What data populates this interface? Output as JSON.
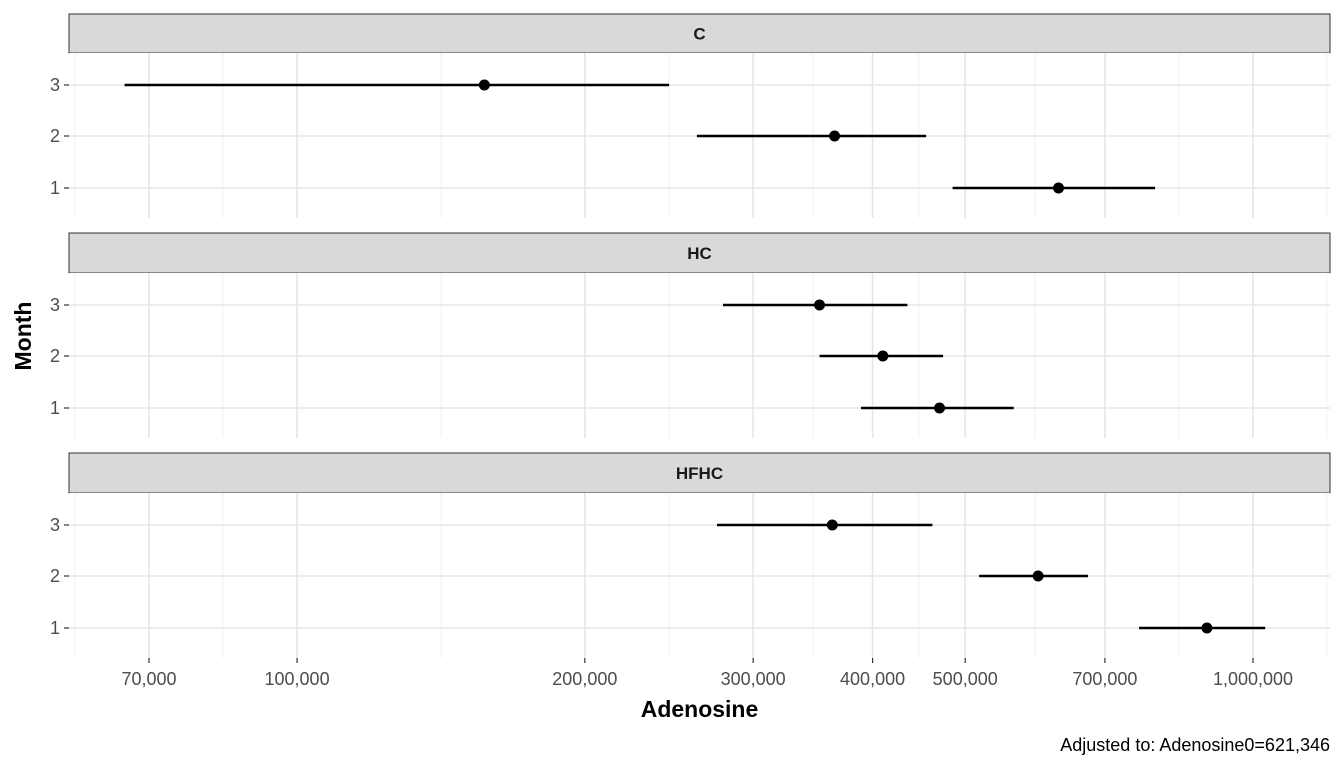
{
  "chart_data": {
    "type": "scatter",
    "subtype": "point-range, faceted, log x-axis",
    "xlabel": "Adenosine",
    "ylabel": "Month",
    "caption": "Adjusted to: Adenosine0=621,346",
    "x_scale": "log10",
    "xlim": [
      60000,
      1150000
    ],
    "x_ticks": [
      70000,
      100000,
      200000,
      300000,
      400000,
      500000,
      700000,
      1000000
    ],
    "x_tick_labels": [
      "70,000",
      "100,000",
      "200,000",
      "300,000",
      "400,000",
      "500,000",
      "700,000",
      "1,000,000"
    ],
    "y_categories": [
      "1",
      "2",
      "3"
    ],
    "grid": true,
    "facets": [
      {
        "label": "C",
        "points": [
          {
            "month": "3",
            "estimate": 157000,
            "lower": 66000,
            "upper": 245000
          },
          {
            "month": "2",
            "estimate": 365000,
            "lower": 262000,
            "upper": 455000
          },
          {
            "month": "1",
            "estimate": 626000,
            "lower": 485000,
            "upper": 790000
          }
        ]
      },
      {
        "label": "HC",
        "points": [
          {
            "month": "3",
            "estimate": 352000,
            "lower": 279000,
            "upper": 435000
          },
          {
            "month": "2",
            "estimate": 410000,
            "lower": 352000,
            "upper": 474000
          },
          {
            "month": "1",
            "estimate": 470000,
            "lower": 389000,
            "upper": 562000
          }
        ]
      },
      {
        "label": "HFHC",
        "points": [
          {
            "month": "3",
            "estimate": 363000,
            "lower": 275000,
            "upper": 462000
          },
          {
            "month": "2",
            "estimate": 596000,
            "lower": 517000,
            "upper": 672000
          },
          {
            "month": "1",
            "estimate": 895000,
            "lower": 760000,
            "upper": 1030000
          }
        ]
      }
    ]
  }
}
